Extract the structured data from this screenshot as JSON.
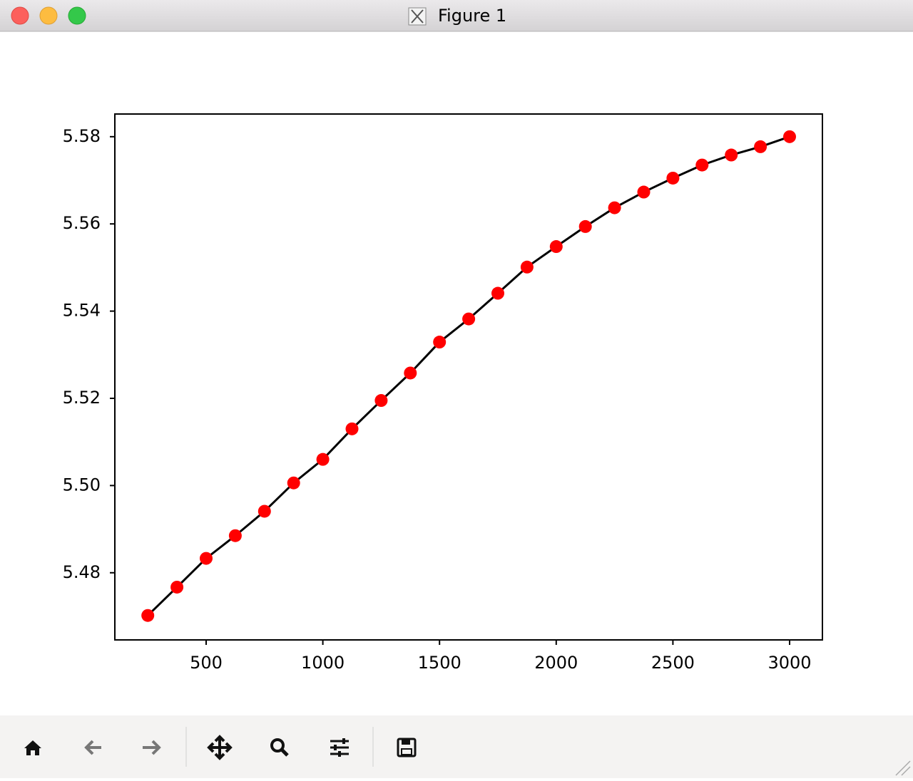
{
  "window": {
    "title": "Figure 1"
  },
  "chart_data": {
    "type": "line",
    "x": [
      250,
      375,
      500,
      625,
      750,
      875,
      1000,
      1125,
      1250,
      1375,
      1500,
      1625,
      1750,
      1875,
      2000,
      2125,
      2250,
      2375,
      2500,
      2625,
      2750,
      2875,
      3000
    ],
    "values": [
      5.4702,
      5.4767,
      5.4833,
      5.4885,
      5.4941,
      5.5006,
      5.506,
      5.513,
      5.5195,
      5.5258,
      5.5329,
      5.5382,
      5.5441,
      5.5501,
      5.5548,
      5.5594,
      5.5637,
      5.5673,
      5.5705,
      5.5735,
      5.5758,
      5.5777,
      5.58
    ],
    "color": "#000000",
    "marker_color": "#ff0000",
    "xlim": [
      108.8,
      3140.6
    ],
    "xticks": [
      500,
      1000,
      1500,
      2000,
      2500,
      3000
    ],
    "ylim": [
      5.4646,
      5.5852
    ],
    "yticks": [
      5.48,
      {
        "value": 5.5,
        "label": "5.50"
      },
      5.52,
      5.54,
      5.56,
      5.58
    ],
    "grid": false
  }
}
